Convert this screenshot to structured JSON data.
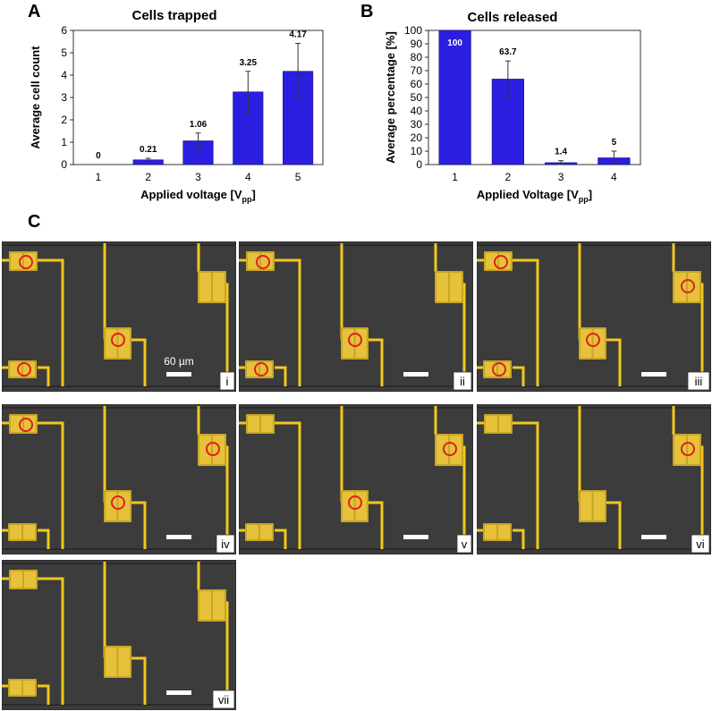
{
  "panels": {
    "a": "A",
    "b": "B",
    "c": "C"
  },
  "chart_data": [
    {
      "type": "bar",
      "title": "Cells trapped",
      "xlabel": "Applied voltage [V",
      "xlabel_sub": "pp",
      "xlabel_end": "]",
      "ylabel": "Average cell count",
      "categories": [
        "1",
        "2",
        "3",
        "4",
        "5"
      ],
      "values": [
        0,
        0.21,
        1.06,
        3.25,
        4.17
      ],
      "value_labels": [
        "0",
        "0.21",
        "1.06",
        "3.25",
        "4.17"
      ],
      "errors": [
        0,
        0.07,
        0.35,
        0.92,
        1.25
      ],
      "ylim": [
        0,
        6
      ],
      "yticks": [
        0,
        1,
        2,
        3,
        4,
        5,
        6
      ],
      "bar_color": "#2b1ee0"
    },
    {
      "type": "bar",
      "title": "Cells released",
      "xlabel": "Applied Voltage [V",
      "xlabel_sub": "pp",
      "xlabel_end": "]",
      "ylabel": "Average percentage [%]",
      "categories": [
        "1",
        "2",
        "3",
        "4"
      ],
      "values": [
        100,
        63.7,
        1.4,
        5
      ],
      "value_labels": [
        "100",
        "63.7",
        "1.4",
        "5"
      ],
      "errors": [
        0,
        13.5,
        1.5,
        5
      ],
      "ylim": [
        0,
        100
      ],
      "yticks": [
        0,
        10,
        20,
        30,
        40,
        50,
        60,
        70,
        80,
        90,
        100
      ],
      "bar_color": "#2b1ee0"
    }
  ],
  "micrographs": {
    "scale_text": "60 µm",
    "items": [
      {
        "label": "i",
        "circles": [
          [
            "tl",
            0.5,
            0.5
          ],
          [
            "mid",
            0.5,
            0.5
          ],
          [
            "bl",
            0.5,
            0.5
          ]
        ]
      },
      {
        "label": "ii",
        "circles": [
          [
            "tl",
            0.5,
            0.5
          ],
          [
            "mid",
            0.5,
            0.5
          ],
          [
            "bl",
            0.5,
            0.5
          ]
        ]
      },
      {
        "label": "iii",
        "circles": [
          [
            "tl",
            0.5,
            0.5
          ],
          [
            "mid",
            0.5,
            0.5
          ],
          [
            "bl",
            0.5,
            0.5
          ],
          [
            "tr",
            0.5,
            0.5
          ]
        ]
      },
      {
        "label": "iv",
        "circles": [
          [
            "tl",
            0.5,
            0.5
          ],
          [
            "mid",
            0.5,
            0.5
          ],
          [
            "tr",
            0.5,
            0.5
          ]
        ]
      },
      {
        "label": "v",
        "circles": [
          [
            "mid",
            0.5,
            0.5
          ],
          [
            "tr",
            0.5,
            0.5
          ]
        ]
      },
      {
        "label": "vi",
        "circles": [
          [
            "tr",
            0.5,
            0.5
          ]
        ]
      },
      {
        "label": "vii",
        "circles": []
      }
    ]
  },
  "colors": {
    "bar": "#2b1ee0",
    "background_dark": "#3c3c3c",
    "electrode": "#e6c23a",
    "electrode_line": "#f0c81e",
    "marker": "#e0201c"
  }
}
